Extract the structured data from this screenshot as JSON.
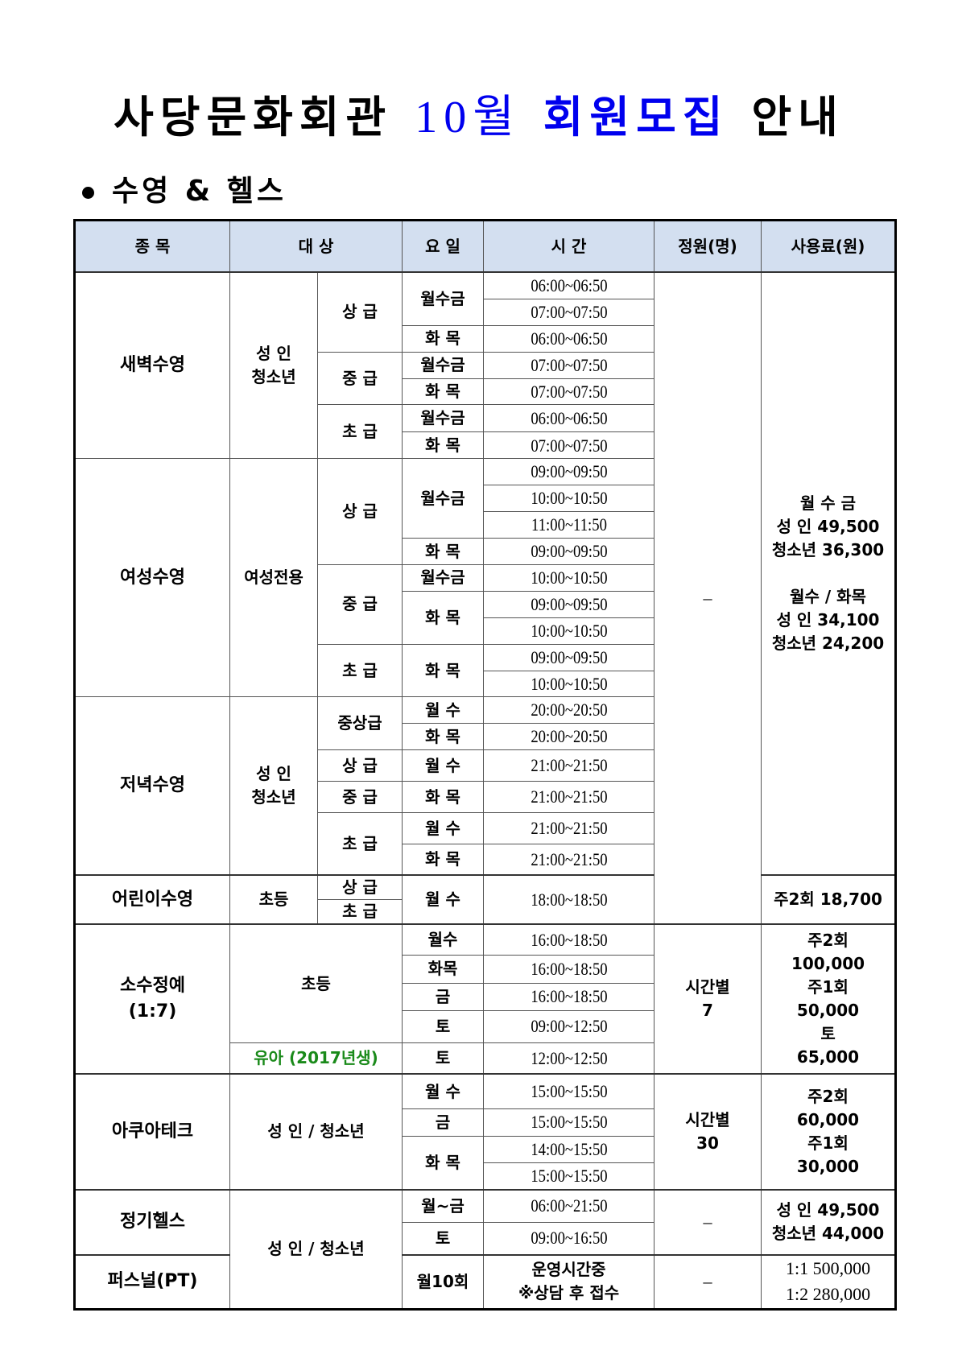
{
  "title": {
    "part1": "사당문화회관",
    "part2": "10월",
    "part3": "회원모집",
    "part4": "안내"
  },
  "section": "수영 & 헬스",
  "headers": [
    "종  목",
    "대  상",
    "요 일",
    "시 간",
    "정원(명)",
    "사용료(원)"
  ],
  "dawn": {
    "name": "새벽수영",
    "target": "성  인\n청소년",
    "levels": [
      "상 급",
      "중 급",
      "초 급"
    ],
    "days": [
      "월수금",
      "화 목",
      "월수금",
      "화 목",
      "월수금",
      "화 목"
    ],
    "times": [
      "06:00~06:50",
      "07:00~07:50",
      "06:00~06:50",
      "07:00~07:50",
      "07:00~07:50",
      "06:00~06:50",
      "07:00~07:50"
    ]
  },
  "women": {
    "name": "여성수영",
    "target": "여성전용",
    "levels": [
      "상 급",
      "중 급",
      "초 급"
    ],
    "days": [
      "월수금",
      "화 목",
      "월수금",
      "화 목",
      "화 목"
    ],
    "times": [
      "09:00~09:50",
      "10:00~10:50",
      "11:00~11:50",
      "09:00~09:50",
      "10:00~10:50",
      "09:00~09:50",
      "10:00~10:50",
      "09:00~09:50",
      "10:00~10:50"
    ]
  },
  "evening": {
    "name": "저녁수영",
    "target": "성  인\n청소년",
    "levels": [
      "중상급",
      "상 급",
      "중 급",
      "초 급"
    ],
    "days": [
      "월 수",
      "화 목",
      "월 수",
      "화 목",
      "월 수",
      "화 목"
    ],
    "times": [
      "20:00~20:50",
      "20:00~20:50",
      "21:00~21:50",
      "21:00~21:50",
      "21:00~21:50",
      "21:00~21:50"
    ]
  },
  "swim_capacity": "–",
  "swim_fee": "월 수 금\n성  인 49,500\n청소년 36,300\n\n월수 / 화목\n성  인 34,100\n청소년 24,200",
  "kids": {
    "name": "어린이수영",
    "target": "초등",
    "levels": [
      "상 급",
      "초 급"
    ],
    "day": "월 수",
    "time": "18:00~18:50",
    "fee": "주2회 18,700"
  },
  "small": {
    "name": "소수정예\n(1:7)",
    "target": "초등",
    "target2": "유아 (2017년생)",
    "days": [
      "월수",
      "화목",
      "금",
      "토",
      "토"
    ],
    "times": [
      "16:00~18:50",
      "16:00~18:50",
      "16:00~18:50",
      "09:00~12:50",
      "12:00~12:50"
    ],
    "capacity": "시간별\n7",
    "fee": "주2회\n100,000\n주1회\n50,000\n토\n65,000"
  },
  "aqua": {
    "name": "아쿠아테크",
    "target": "성 인 / 청소년",
    "days": [
      "월 수",
      "금",
      "화 목"
    ],
    "times": [
      "15:00~15:50",
      "15:00~15:50",
      "14:00~15:50",
      "15:00~15:50"
    ],
    "capacity": "시간별\n30",
    "fee": "주2회\n60,000\n주1회\n30,000"
  },
  "gym": {
    "name": "정기헬스",
    "target": "성 인 / 청소년",
    "days": [
      "월~금",
      "토"
    ],
    "times": [
      "06:00~21:50",
      "09:00~16:50"
    ],
    "capacity": "–",
    "fee": "성  인 49,500\n청소년 44,000"
  },
  "pt": {
    "name": "퍼스널(PT)",
    "day": "월10회",
    "time": "운영시간중\n※상담 후 접수",
    "capacity": "–",
    "fee": "1:1 500,000\n1:2 280,000"
  }
}
